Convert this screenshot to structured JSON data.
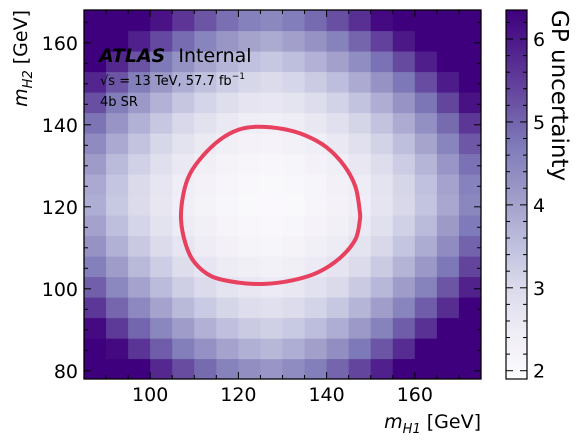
{
  "chart_data": {
    "type": "heatmap",
    "xlabel": "m_H1 [GeV]",
    "ylabel": "m_H2 [GeV]",
    "xlim": [
      85,
      175
    ],
    "ylim": [
      78,
      168
    ],
    "x_ticks": [
      100,
      120,
      140,
      160
    ],
    "y_ticks": [
      80,
      100,
      120,
      140,
      160
    ],
    "grid": false,
    "colorbar": {
      "label": "GP uncertainty",
      "range": [
        1.9,
        6.35
      ],
      "ticks": [
        2,
        3,
        4,
        5,
        6
      ],
      "colormap": [
        "#fcfbfd",
        "#efedf5",
        "#dadaeb",
        "#bcbddc",
        "#9e9ac8",
        "#807dba",
        "#6a51a3",
        "#54278f",
        "#3f007d"
      ]
    },
    "surface": {
      "x_bins": [
        87.5,
        92.5,
        97.5,
        102.5,
        107.5,
        112.5,
        117.5,
        122.5,
        127.5,
        132.5,
        137.5,
        142.5,
        147.5,
        152.5,
        157.5,
        162.5,
        167.5,
        172.5
      ],
      "y_bins": [
        80.5,
        85.5,
        90.5,
        95.5,
        100.5,
        105.5,
        110.5,
        115.5,
        120.5,
        125.5,
        130.5,
        135.5,
        140.5,
        145.5,
        150.5,
        155.5,
        160.5,
        165.5
      ],
      "minimum": {
        "x": 127,
        "y": 122,
        "value": 2.0
      },
      "description_of_shape": "bowl-shaped uncertainty, lowest near the center, rising toward edges and corners (max about 6.3 at corners)"
    },
    "contour": {
      "color": "#e8405f",
      "points": [
        [
          124,
          139.5
        ],
        [
          130,
          139
        ],
        [
          135,
          137.5
        ],
        [
          140,
          134.5
        ],
        [
          144,
          130
        ],
        [
          146.5,
          125
        ],
        [
          147.5,
          119
        ],
        [
          147.5,
          116.5
        ],
        [
          146.5,
          112
        ],
        [
          143,
          107.5
        ],
        [
          138,
          104
        ],
        [
          132,
          102
        ],
        [
          126,
          101.2
        ],
        [
          120,
          101.5
        ],
        [
          114,
          103
        ],
        [
          110,
          106.5
        ],
        [
          108,
          111
        ],
        [
          107,
          117
        ],
        [
          107.5,
          123
        ],
        [
          109,
          128
        ],
        [
          112,
          132.5
        ],
        [
          116,
          136.5
        ],
        [
          120,
          138.8
        ],
        [
          124,
          139.5
        ]
      ]
    },
    "annotations": {
      "experiment": "ATLAS",
      "status": "Internal",
      "lumi_prefix": "√s = 13 TeV, 57.7 fb",
      "lumi_exp": "−1",
      "region": "4b SR"
    }
  }
}
